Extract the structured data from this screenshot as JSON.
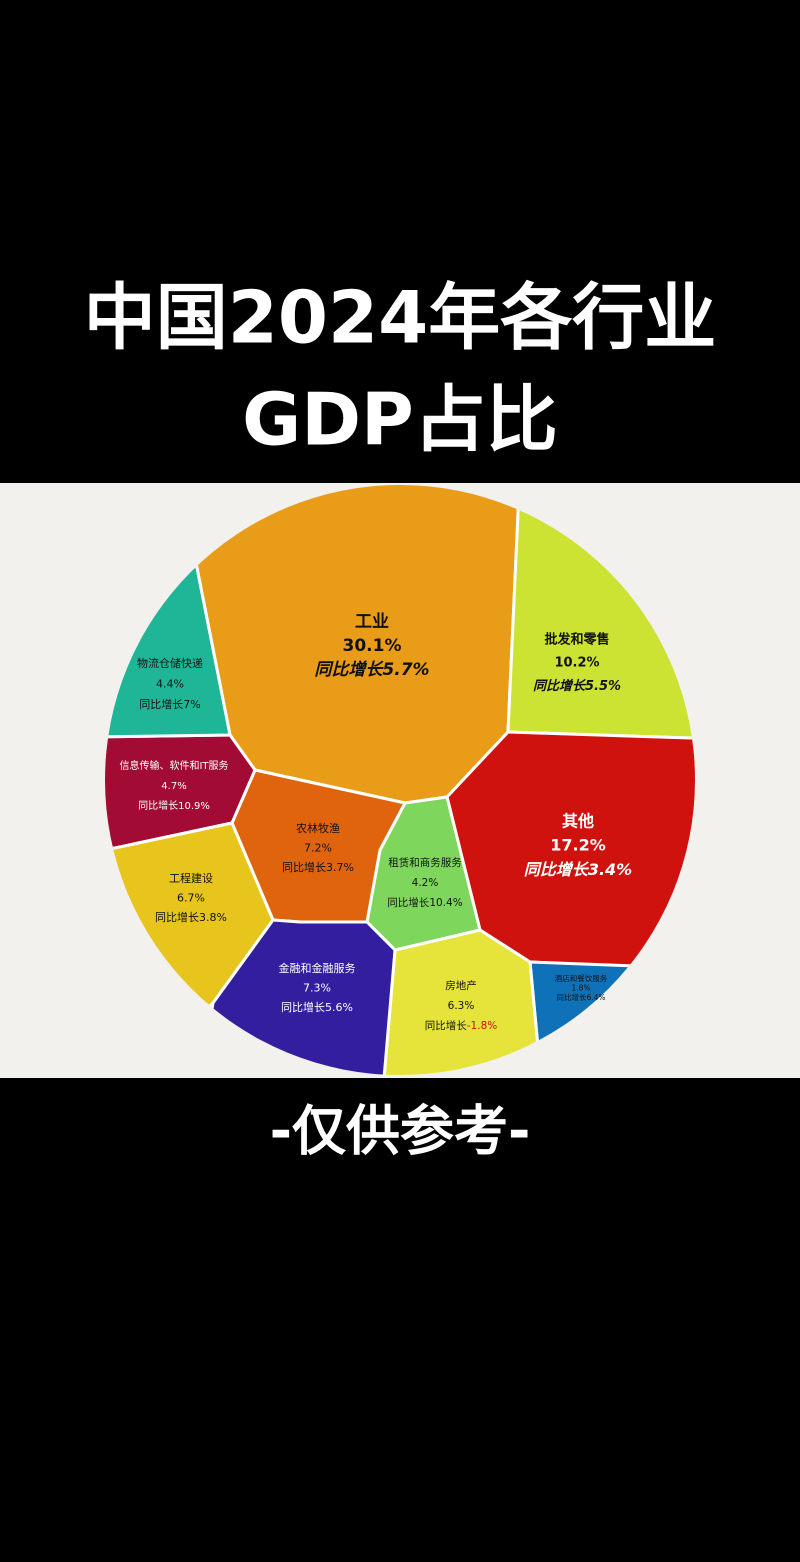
{
  "chart_data": {
    "type": "voronoi-treemap",
    "title": [
      "中国2024年各行业",
      "GDP占比"
    ],
    "note": "-仅供参考-",
    "categories": [
      "工业",
      "批发和零售",
      "其他",
      "酒店和餐饮服务",
      "房地产",
      "租赁和商务服务",
      "农林牧渔",
      "信息传输、软件和IT服务",
      "物流仓储快递",
      "工程建设",
      "金融和金融服务"
    ],
    "values": [
      30.1,
      10.2,
      17.2,
      1.8,
      6.3,
      4.2,
      7.2,
      4.7,
      4.4,
      6.7,
      7.3
    ],
    "value_labels": [
      "30.1%",
      "10.2%",
      "17.2%",
      "1.8%",
      "6.3%",
      "4.2%",
      "7.2%",
      "4.7%",
      "4.4%",
      "6.7%",
      "7.3%"
    ],
    "growth_prefix": "同比增长",
    "growth": {
      "values": [
        5.7,
        5.5,
        3.4,
        6.4,
        -1.8,
        10.4,
        3.7,
        10.9,
        7,
        3.8,
        5.6
      ],
      "value_labels": [
        "5.7%",
        "5.5%",
        "3.4%",
        "6.4%",
        "-1.8%",
        "10.4%",
        "3.7%",
        "10.9%",
        "7%",
        "3.8%",
        "5.6%"
      ]
    },
    "colors": [
      "#e89c18",
      "#cde334",
      "#d0120e",
      "#0f72b8",
      "#e6e43a",
      "#7ed65c",
      "#e0640e",
      "#a20c34",
      "#1fb698",
      "#e8c51c",
      "#341ea0"
    ],
    "negative_color": "#d0120e"
  }
}
